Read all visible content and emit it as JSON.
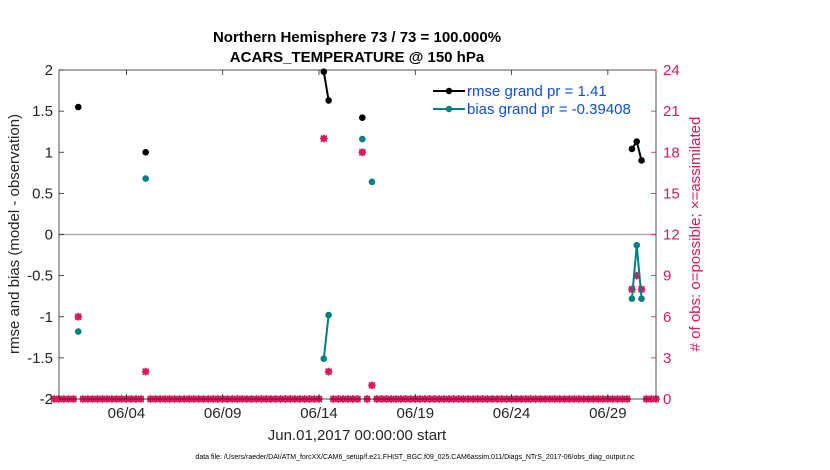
{
  "chart_data": {
    "type": "line",
    "title_line1": "Northern Hemisphere 73 / 73 = 100.000%",
    "title_line2": "ACARS_TEMPERATURE @ 150 hPa",
    "xlabel": "Jun.01,2017 00:00:00 start",
    "ylabel_left": "rmse and bias (model - observation)",
    "ylabel_right": "# of obs: o=possible; ×=assimilated",
    "footer": "data file: /Users/raeder/DAI/ATM_forcXX/CAM6_setup/f.e21.FHIST_BGC.f09_025.CAM6assim.011/Diags_NTrS_2017-06/obs_diag_output.nc",
    "xlim": [
      0,
      31
    ],
    "ylim_left": [
      -2,
      2
    ],
    "ylim_right": [
      0,
      24
    ],
    "x_ticks": [
      3.5,
      8.5,
      13.5,
      18.5,
      23.5,
      28.5
    ],
    "x_tick_labels": [
      "06/04",
      "06/09",
      "06/14",
      "06/19",
      "06/24",
      "06/29"
    ],
    "y_left_ticks": [
      -2,
      -1.5,
      -1,
      -0.5,
      0,
      0.5,
      1,
      1.5,
      2
    ],
    "y_left_tick_labels": [
      "-2",
      "-1.5",
      "-1",
      "-0.5",
      "0",
      "0.5",
      "1",
      "1.5",
      "2"
    ],
    "y_right_ticks": [
      0,
      3,
      6,
      9,
      12,
      15,
      18,
      21,
      24
    ],
    "y_right_tick_labels": [
      "0",
      "3",
      "6",
      "9",
      "12",
      "15",
      "18",
      "21",
      "24"
    ],
    "zero_line": 0,
    "colors": {
      "rmse": "#000000",
      "bias": "#008080",
      "obs": "#d81b60",
      "zero": "#b0b0b0",
      "legend_text": "#0b4fe0"
    },
    "series": [
      {
        "name": "rmse grand pr = 1.41",
        "key": "rmse",
        "axis": "left",
        "segments": [
          [
            [
              1.0,
              1.55
            ]
          ],
          [
            [
              4.5,
              1.0
            ]
          ],
          [
            [
              13.75,
              1.98
            ],
            [
              14.0,
              1.63
            ]
          ],
          [
            [
              15.75,
              1.42
            ]
          ],
          [
            [
              29.75,
              1.04
            ],
            [
              30.0,
              1.13
            ],
            [
              30.25,
              0.9
            ]
          ]
        ]
      },
      {
        "name": "bias grand pr = -0.39408",
        "key": "bias",
        "axis": "left",
        "segments": [
          [
            [
              1.0,
              -1.18
            ]
          ],
          [
            [
              4.5,
              0.68
            ]
          ],
          [
            [
              13.75,
              -1.51
            ],
            [
              14.0,
              -0.98
            ]
          ],
          [
            [
              15.75,
              1.16
            ]
          ],
          [
            [
              16.25,
              0.64
            ]
          ],
          [
            [
              29.75,
              -0.78
            ],
            [
              30.0,
              -0.13
            ],
            [
              30.25,
              -0.78
            ]
          ]
        ]
      }
    ],
    "obs_possible": {
      "name": "obs possible",
      "axis": "right",
      "x": [
        -0.25,
        0.0,
        0.25,
        0.5,
        0.75,
        1.0,
        1.25,
        1.5,
        1.75,
        2.0,
        2.25,
        2.5,
        2.75,
        3.0,
        3.25,
        3.5,
        3.75,
        4.0,
        4.25,
        4.5,
        4.75,
        5.0,
        5.25,
        5.5,
        5.75,
        6.0,
        6.25,
        6.5,
        6.75,
        7.0,
        7.25,
        7.5,
        7.75,
        8.0,
        8.25,
        8.5,
        8.75,
        9.0,
        9.25,
        9.5,
        9.75,
        10.0,
        10.25,
        10.5,
        10.75,
        11.0,
        11.25,
        11.5,
        11.75,
        12.0,
        12.25,
        12.5,
        12.75,
        13.0,
        13.25,
        13.5,
        13.75,
        14.0,
        14.25,
        14.5,
        14.75,
        15.0,
        15.25,
        15.5,
        15.75,
        16.0,
        16.25,
        16.5,
        16.75,
        17.0,
        17.25,
        17.5,
        17.75,
        18.0,
        18.25,
        18.5,
        18.75,
        19.0,
        19.25,
        19.5,
        19.75,
        20.0,
        20.25,
        20.5,
        20.75,
        21.0,
        21.25,
        21.5,
        21.75,
        22.0,
        22.25,
        22.5,
        22.75,
        23.0,
        23.25,
        23.5,
        23.75,
        24.0,
        24.25,
        24.5,
        24.75,
        25.0,
        25.25,
        25.5,
        25.75,
        26.0,
        26.25,
        26.5,
        26.75,
        27.0,
        27.25,
        27.5,
        27.75,
        28.0,
        28.25,
        28.5,
        28.75,
        29.0,
        29.25,
        29.5,
        29.75,
        30.0,
        30.25,
        30.5,
        30.75,
        31.0
      ],
      "y": [
        0,
        0,
        0,
        0,
        0,
        6,
        0,
        0,
        0,
        0,
        0,
        0,
        0,
        0,
        0,
        0,
        0,
        0,
        0,
        2,
        0,
        0,
        0,
        0,
        0,
        0,
        0,
        0,
        0,
        0,
        0,
        0,
        0,
        0,
        0,
        0,
        0,
        0,
        0,
        0,
        0,
        0,
        0,
        0,
        0,
        0,
        0,
        0,
        0,
        0,
        0,
        0,
        0,
        0,
        0,
        0,
        19,
        2,
        0,
        0,
        0,
        0,
        0,
        0,
        18,
        0,
        1,
        0,
        0,
        0,
        0,
        0,
        0,
        0,
        0,
        0,
        0,
        0,
        0,
        0,
        0,
        0,
        0,
        0,
        0,
        0,
        0,
        0,
        0,
        0,
        0,
        0,
        0,
        0,
        0,
        0,
        0,
        0,
        0,
        0,
        0,
        0,
        0,
        0,
        0,
        0,
        0,
        0,
        0,
        0,
        0,
        0,
        0,
        0,
        0,
        0,
        0,
        0,
        0,
        0,
        8,
        9,
        8,
        0,
        0,
        0
      ]
    }
  }
}
